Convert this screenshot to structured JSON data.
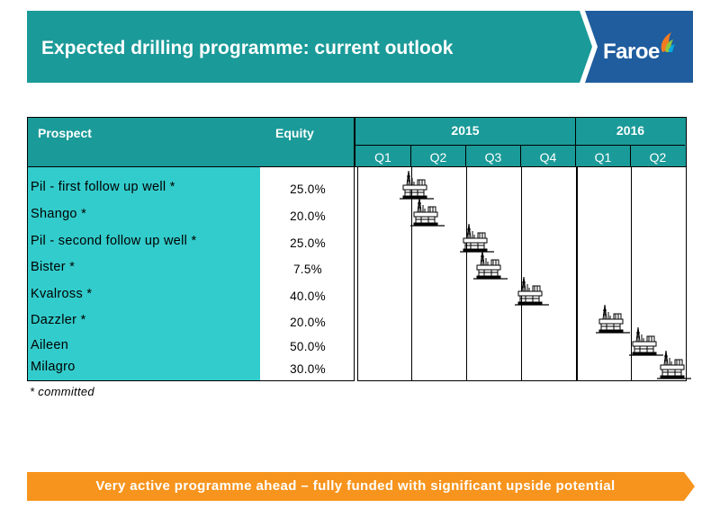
{
  "header": {
    "title": "Expected drilling programme: current outlook",
    "logo_text": "Faroe",
    "bg_color": "#1a9a98",
    "logo_bg_color": "#1f5d9e"
  },
  "table": {
    "col_prospect": "Prospect",
    "col_equity": "Equity",
    "years": [
      "2015",
      "2016"
    ],
    "quarters": [
      "Q1",
      "Q2",
      "Q3",
      "Q4",
      "Q1",
      "Q2"
    ],
    "rows": [
      {
        "name": "Pil - first follow up well *",
        "equity": "25.0%"
      },
      {
        "name": "Shango *",
        "equity": "20.0%"
      },
      {
        "name": "Pil - second follow up well *",
        "equity": "25.0%"
      },
      {
        "name": "Bister *",
        "equity": "7.5%"
      },
      {
        "name": "Kvalross *",
        "equity": "40.0%"
      },
      {
        "name": "Dazzler *",
        "equity": "20.0%"
      },
      {
        "name": "Aileen",
        "equity": "50.0%"
      },
      {
        "name": "Milagro",
        "equity": "30.0%"
      }
    ]
  },
  "footnote": "* committed",
  "banner": {
    "text": "Very active programme ahead – fully funded with significant upside potential",
    "color": "#f7941d"
  },
  "icons": {
    "rig": "drilling-rig-icon"
  }
}
